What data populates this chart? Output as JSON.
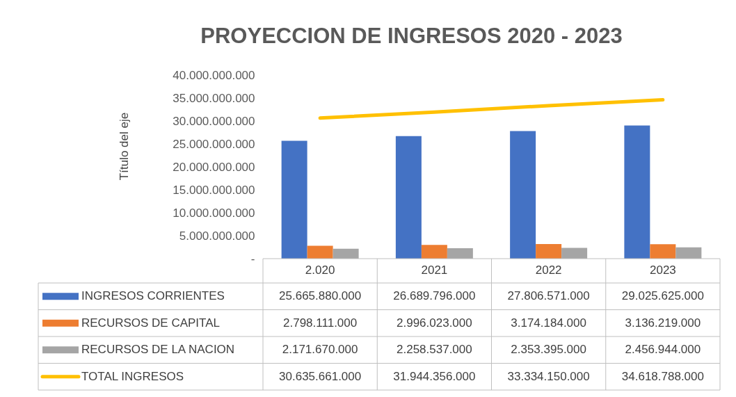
{
  "chart_data": {
    "type": "bar",
    "title": "PROYECCION DE INGRESOS 2020 - 2023",
    "ylabel": "Título del eje",
    "categories": [
      "2.020",
      "2021",
      "2022",
      "2023"
    ],
    "series": [
      {
        "name": "INGRESOS CORRIENTES",
        "color": "#4472c4",
        "values": [
          25665880000,
          26689796000,
          27806571000,
          29025625000
        ],
        "value_labels": [
          "25.665.880.000",
          "26.689.796.000",
          "27.806.571.000",
          "29.025.625.000"
        ]
      },
      {
        "name": "RECURSOS DE CAPITAL",
        "color": "#ed7d31",
        "values": [
          2798111000,
          2996023000,
          3174184000,
          3136219000
        ],
        "value_labels": [
          "2.798.111.000",
          "2.996.023.000",
          "3.174.184.000",
          "3.136.219.000"
        ]
      },
      {
        "name": "RECURSOS DE LA NACION",
        "color": "#a5a5a5",
        "values": [
          2171670000,
          2258537000,
          2353395000,
          2456944000
        ],
        "value_labels": [
          "2.171.670.000",
          "2.258.537.000",
          "2.353.395.000",
          "2.456.944.000"
        ]
      },
      {
        "name": "TOTAL INGRESOS",
        "color": "#ffc000",
        "type": "line",
        "values": [
          30635661000,
          31944356000,
          33334150000,
          34618788000
        ],
        "value_labels": [
          "30.635.661.000",
          "31.944.356.000",
          "33.334.150.000",
          "34.618.788.000"
        ]
      }
    ],
    "ylim": [
      0,
      40000000000
    ],
    "yticks": [
      {
        "value": 0,
        "label": "-"
      },
      {
        "value": 5000000000,
        "label": "5.000.000.000"
      },
      {
        "value": 10000000000,
        "label": "10.000.000.000"
      },
      {
        "value": 15000000000,
        "label": "15.000.000.000"
      },
      {
        "value": 20000000000,
        "label": "20.000.000.000"
      },
      {
        "value": 25000000000,
        "label": "25.000.000.000"
      },
      {
        "value": 30000000000,
        "label": "30.000.000.000"
      },
      {
        "value": 35000000000,
        "label": "35.000.000.000"
      },
      {
        "value": 40000000000,
        "label": "40.000.000.000"
      }
    ],
    "legend": "bottom"
  }
}
